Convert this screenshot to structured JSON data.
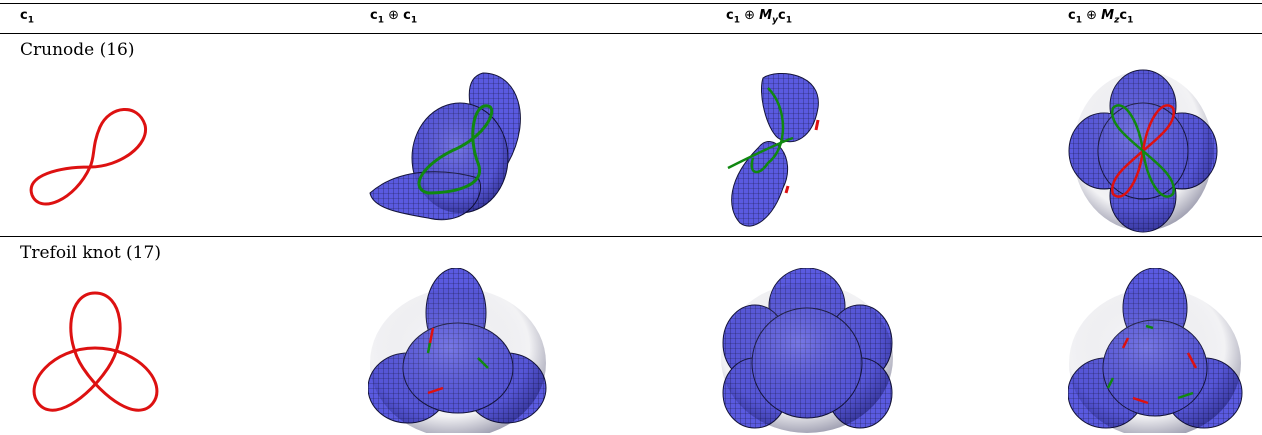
{
  "table": {
    "columns": [
      {
        "base": "c",
        "sub": "1",
        "rest": ""
      },
      {
        "base": "c",
        "sub": "1",
        "op": " ⊕ ",
        "m": "",
        "msub": "",
        "base2": "c",
        "sub2": "1"
      },
      {
        "base": "c",
        "sub": "1",
        "op": " ⊕ ",
        "m": "M",
        "msub": "y",
        "base2": "c",
        "sub2": "1"
      },
      {
        "base": "c",
        "sub": "1",
        "op": " ⊕ ",
        "m": "M",
        "msub": "z",
        "base2": "c",
        "sub2": "1"
      }
    ],
    "rows": [
      {
        "label": "Crunode (16)"
      },
      {
        "label": "Trefoil knot (17)"
      }
    ]
  },
  "colors": {
    "curve": "#dd1111",
    "surface": "#5555dd",
    "surface_dark": "#1e1e6e",
    "green": "#118811"
  }
}
